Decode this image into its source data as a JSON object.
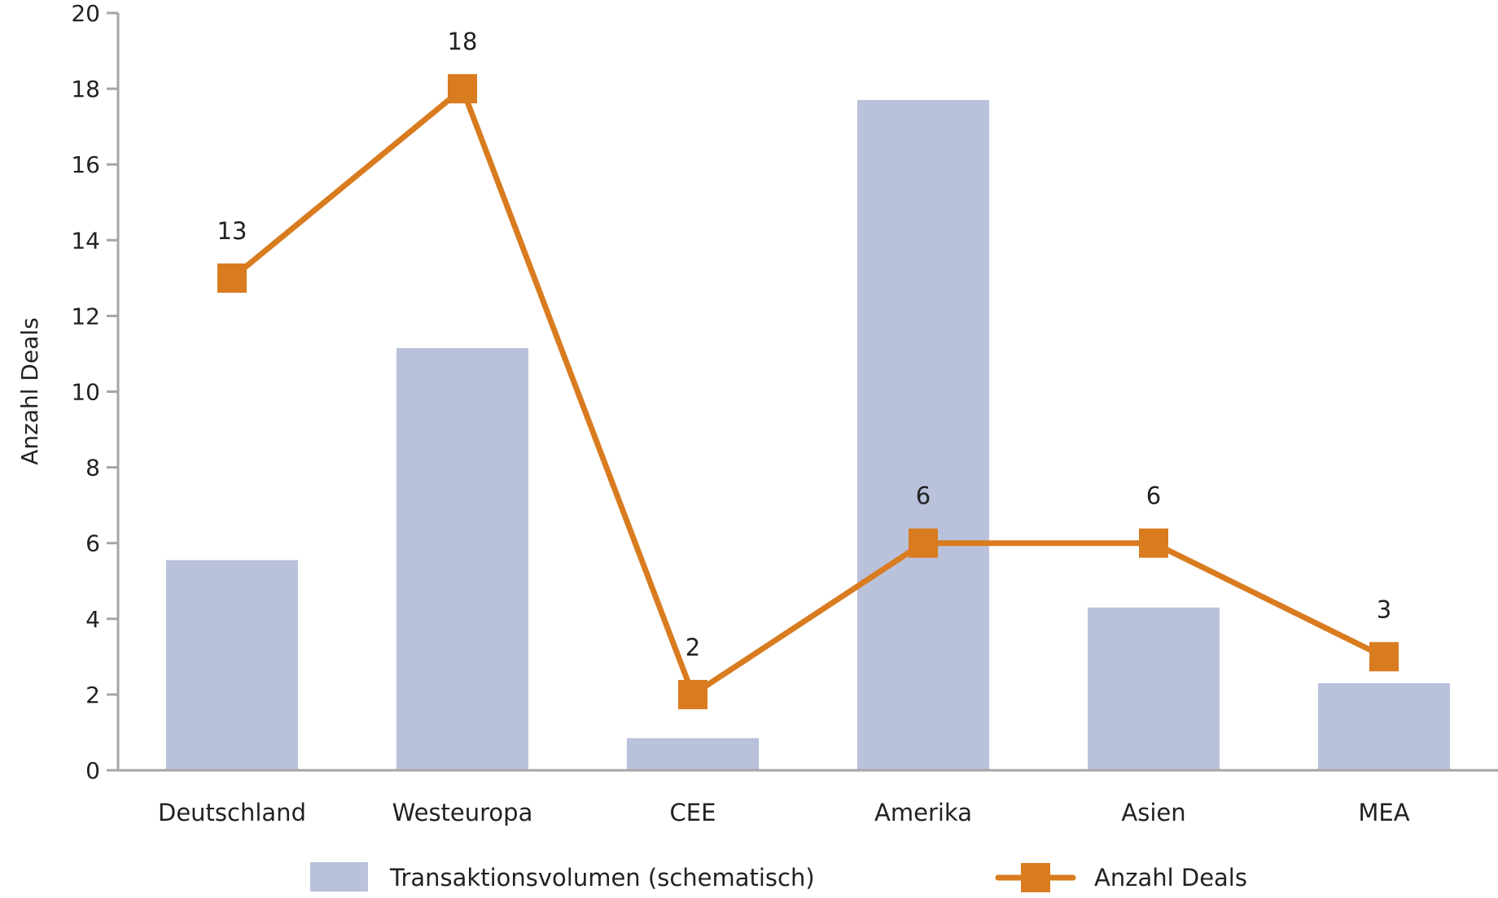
{
  "chart_data": {
    "type": "bar+line",
    "title": "",
    "xlabel": "",
    "ylabel": "Anzahl Deals",
    "ylim": [
      0,
      20
    ],
    "yticks": [
      0,
      2,
      4,
      6,
      8,
      10,
      12,
      14,
      16,
      18,
      20
    ],
    "grid": false,
    "legend_position": "bottom",
    "categories": [
      "Deutschland",
      "Westeuropa",
      "CEE",
      "Amerika",
      "Asien",
      "MEA"
    ],
    "series": [
      {
        "name": "Transaktionsvolumen (schematisch)",
        "type": "bar",
        "color": "#bac1da",
        "values": [
          5.55,
          11.15,
          0.85,
          17.7,
          4.3,
          2.3
        ]
      },
      {
        "name": "Anzahl Deals",
        "type": "line",
        "color": "#d97b1f",
        "marker": "square",
        "values": [
          13,
          18,
          2,
          6,
          6,
          3
        ],
        "data_labels": [
          "13",
          "18",
          "2",
          "6",
          "6",
          "3"
        ]
      }
    ]
  }
}
